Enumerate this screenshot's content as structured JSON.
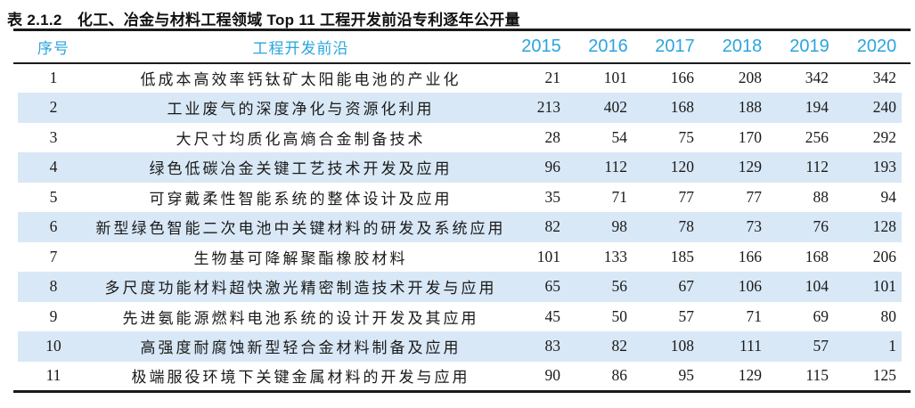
{
  "title": "表 2.1.2　化工、冶金与材料工程领域 Top 11 工程开发前沿专利逐年公开量",
  "colors": {
    "header_text": "#2aa5de",
    "stripe": "#d9e8f6",
    "rule": "#1a1a1a"
  },
  "table": {
    "columns": [
      "序号",
      "工程开发前沿",
      "2015",
      "2016",
      "2017",
      "2018",
      "2019",
      "2020"
    ],
    "rows": [
      {
        "rank": "1",
        "front": "低成本高效率钙钛矿太阳能电池的产业化",
        "values": [
          "21",
          "101",
          "166",
          "208",
          "342",
          "342"
        ]
      },
      {
        "rank": "2",
        "front": "工业废气的深度净化与资源化利用",
        "values": [
          "213",
          "402",
          "168",
          "188",
          "194",
          "240"
        ]
      },
      {
        "rank": "3",
        "front": "大尺寸均质化高熵合金制备技术",
        "values": [
          "28",
          "54",
          "75",
          "170",
          "256",
          "292"
        ]
      },
      {
        "rank": "4",
        "front": "绿色低碳冶金关键工艺技术开发及应用",
        "values": [
          "96",
          "112",
          "120",
          "129",
          "112",
          "193"
        ]
      },
      {
        "rank": "5",
        "front": "可穿戴柔性智能系统的整体设计及应用",
        "values": [
          "35",
          "71",
          "77",
          "77",
          "88",
          "94"
        ]
      },
      {
        "rank": "6",
        "front": "新型绿色智能二次电池中关键材料的研发及系统应用",
        "values": [
          "82",
          "98",
          "78",
          "73",
          "76",
          "128"
        ]
      },
      {
        "rank": "7",
        "front": "生物基可降解聚酯橡胶材料",
        "values": [
          "101",
          "133",
          "185",
          "166",
          "168",
          "206"
        ]
      },
      {
        "rank": "8",
        "front": "多尺度功能材料超快激光精密制造技术开发与应用",
        "values": [
          "65",
          "56",
          "67",
          "106",
          "104",
          "101"
        ]
      },
      {
        "rank": "9",
        "front": "先进氨能源燃料电池系统的设计开发及其应用",
        "values": [
          "45",
          "50",
          "57",
          "71",
          "69",
          "80"
        ]
      },
      {
        "rank": "10",
        "front": "高强度耐腐蚀新型轻合金材料制备及应用",
        "values": [
          "83",
          "82",
          "108",
          "111",
          "57",
          "1"
        ]
      },
      {
        "rank": "11",
        "front": "极端服役环境下关键金属材料的开发与应用",
        "values": [
          "90",
          "86",
          "95",
          "129",
          "115",
          "125"
        ]
      }
    ]
  }
}
